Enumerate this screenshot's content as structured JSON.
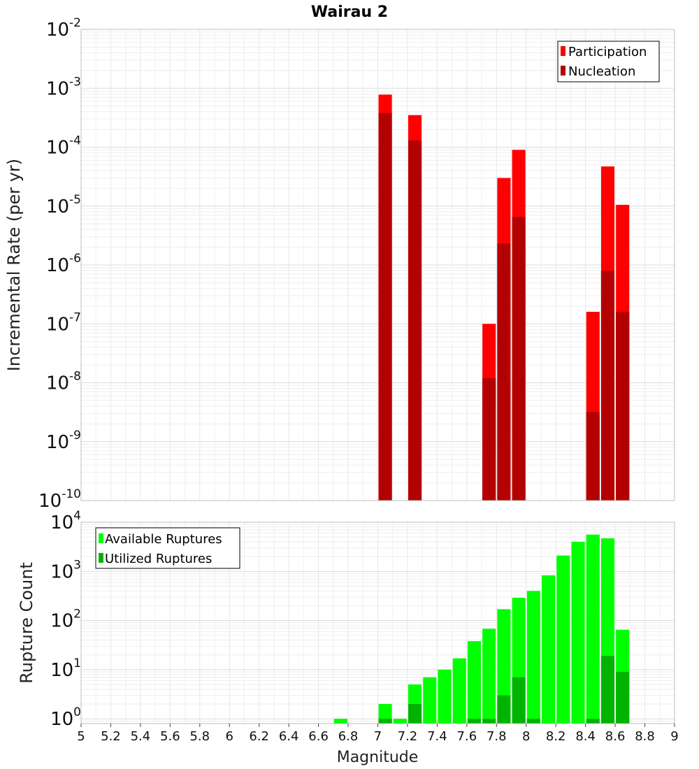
{
  "chart_data": [
    {
      "type": "bar",
      "title": "Wairau 2",
      "ylabel": "Incremental Rate (per yr)",
      "xlabel": "",
      "xlim": [
        5,
        9
      ],
      "ylim": [
        1e-10,
        0.01
      ],
      "yscale": "log",
      "grid": true,
      "legend_position": "top-right",
      "series": [
        {
          "name": "Participation",
          "color": "#ff0000",
          "points": [
            {
              "x": 7.05,
              "y": 0.00078
            },
            {
              "x": 7.25,
              "y": 0.00035
            },
            {
              "x": 7.75,
              "y": 1e-07
            },
            {
              "x": 7.85,
              "y": 3e-05
            },
            {
              "x": 7.95,
              "y": 9e-05
            },
            {
              "x": 8.45,
              "y": 1.6e-07
            },
            {
              "x": 8.55,
              "y": 4.7e-05
            },
            {
              "x": 8.65,
              "y": 1.05e-05
            }
          ]
        },
        {
          "name": "Nucleation",
          "color": "#b30000",
          "points": [
            {
              "x": 7.05,
              "y": 0.00038
            },
            {
              "x": 7.25,
              "y": 0.00013
            },
            {
              "x": 7.75,
              "y": 1.2e-08
            },
            {
              "x": 7.85,
              "y": 2.3e-06
            },
            {
              "x": 7.95,
              "y": 6.5e-06
            },
            {
              "x": 8.45,
              "y": 3.2e-09
            },
            {
              "x": 8.55,
              "y": 8e-07
            },
            {
              "x": 8.65,
              "y": 1.6e-07
            }
          ]
        }
      ]
    },
    {
      "type": "bar",
      "title": "",
      "ylabel": "Rupture Count",
      "xlabel": "Magnitude",
      "xlim": [
        5,
        9
      ],
      "ylim": [
        0.8,
        10000
      ],
      "yscale": "log",
      "grid": true,
      "legend_position": "top-left",
      "series": [
        {
          "name": "Available Ruptures",
          "color": "#00ff00",
          "points": [
            {
              "x": 6.75,
              "y": 1
            },
            {
              "x": 7.05,
              "y": 2
            },
            {
              "x": 7.15,
              "y": 1
            },
            {
              "x": 7.25,
              "y": 5
            },
            {
              "x": 7.35,
              "y": 7
            },
            {
              "x": 7.45,
              "y": 10
            },
            {
              "x": 7.55,
              "y": 17
            },
            {
              "x": 7.65,
              "y": 38
            },
            {
              "x": 7.75,
              "y": 68
            },
            {
              "x": 7.85,
              "y": 170
            },
            {
              "x": 7.95,
              "y": 290
            },
            {
              "x": 8.05,
              "y": 400
            },
            {
              "x": 8.15,
              "y": 830
            },
            {
              "x": 8.25,
              "y": 2100
            },
            {
              "x": 8.35,
              "y": 4000
            },
            {
              "x": 8.45,
              "y": 5600
            },
            {
              "x": 8.55,
              "y": 4700
            },
            {
              "x": 8.65,
              "y": 65
            }
          ]
        },
        {
          "name": "Utilized Ruptures",
          "color": "#00b300",
          "points": [
            {
              "x": 7.05,
              "y": 1
            },
            {
              "x": 7.25,
              "y": 2
            },
            {
              "x": 7.65,
              "y": 1
            },
            {
              "x": 7.75,
              "y": 1
            },
            {
              "x": 7.85,
              "y": 3
            },
            {
              "x": 7.95,
              "y": 7
            },
            {
              "x": 8.05,
              "y": 1
            },
            {
              "x": 8.45,
              "y": 1
            },
            {
              "x": 8.55,
              "y": 19
            },
            {
              "x": 8.65,
              "y": 9
            }
          ]
        }
      ]
    }
  ],
  "top_ticks": {
    "base": "10",
    "exponents": [
      "-10",
      "-9",
      "-8",
      "-7",
      "-6",
      "-5",
      "-4",
      "-3",
      "-2"
    ]
  },
  "bottom_ticks": {
    "base": "10",
    "exponents": [
      "0",
      "1",
      "2",
      "3",
      "4"
    ]
  },
  "x_ticks": [
    "5",
    "5.2",
    "5.4",
    "5.6",
    "5.8",
    "6",
    "6.2",
    "6.4",
    "6.6",
    "6.8",
    "7",
    "7.2",
    "7.4",
    "7.6",
    "7.8",
    "8",
    "8.2",
    "8.4",
    "8.6",
    "8.8",
    "9"
  ]
}
